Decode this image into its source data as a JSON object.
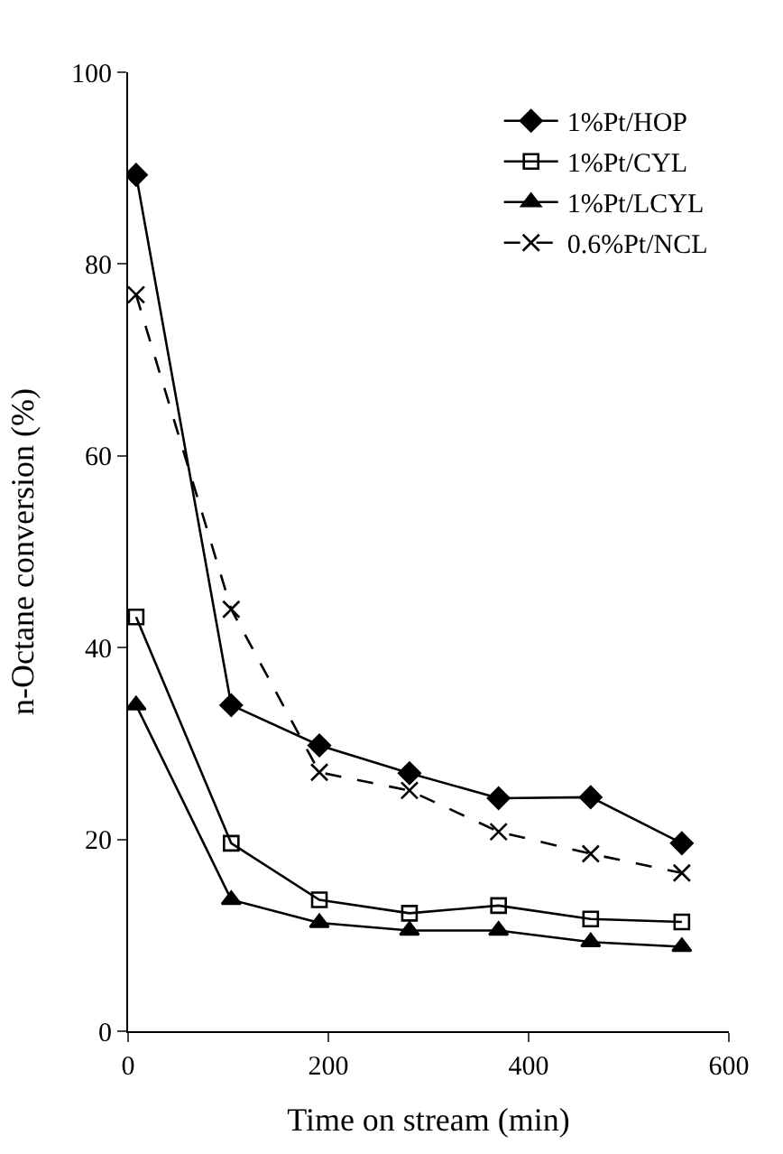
{
  "chart_data": {
    "type": "line",
    "xlabel": "Time on stream (min)",
    "ylabel": "n-Octane conversion (%)",
    "xlim": [
      0,
      600
    ],
    "xticks": [
      0,
      200,
      400,
      600
    ],
    "ylim": [
      0,
      100
    ],
    "yticks": [
      0,
      20,
      40,
      60,
      80,
      100
    ],
    "legend": "top right",
    "series": [
      {
        "name": "1%Pt/HOP",
        "color": "#000000",
        "marker": "diamond",
        "line_style": "solid",
        "x": [
          8,
          103,
          191,
          281,
          370,
          462,
          553
        ],
        "values": [
          89.3,
          34,
          29.8,
          26.9,
          24.3,
          24.4,
          19.6
        ]
      },
      {
        "name": "1%Pt/CYL",
        "color": "#000000",
        "marker": "square-open",
        "line_style": "solid",
        "x": [
          8,
          103,
          191,
          281,
          370,
          462,
          553
        ],
        "values": [
          43.2,
          19.6,
          13.7,
          12.3,
          13.1,
          11.7,
          11.4
        ]
      },
      {
        "name": "1%Pt/LCYL",
        "color": "#000000",
        "marker": "triangle",
        "line_style": "solid",
        "x": [
          8,
          103,
          191,
          281,
          370,
          462,
          553
        ],
        "values": [
          34,
          13.7,
          11.3,
          10.5,
          10.5,
          9.3,
          8.8
        ]
      },
      {
        "name": "0.6%Pt/NCL",
        "color": "#000000",
        "marker": "cross",
        "line_style": "dashed",
        "x": [
          8,
          103,
          191,
          281,
          370,
          462,
          553
        ],
        "values": [
          76.8,
          44,
          27,
          25.1,
          20.8,
          18.5,
          16.5
        ]
      }
    ]
  }
}
